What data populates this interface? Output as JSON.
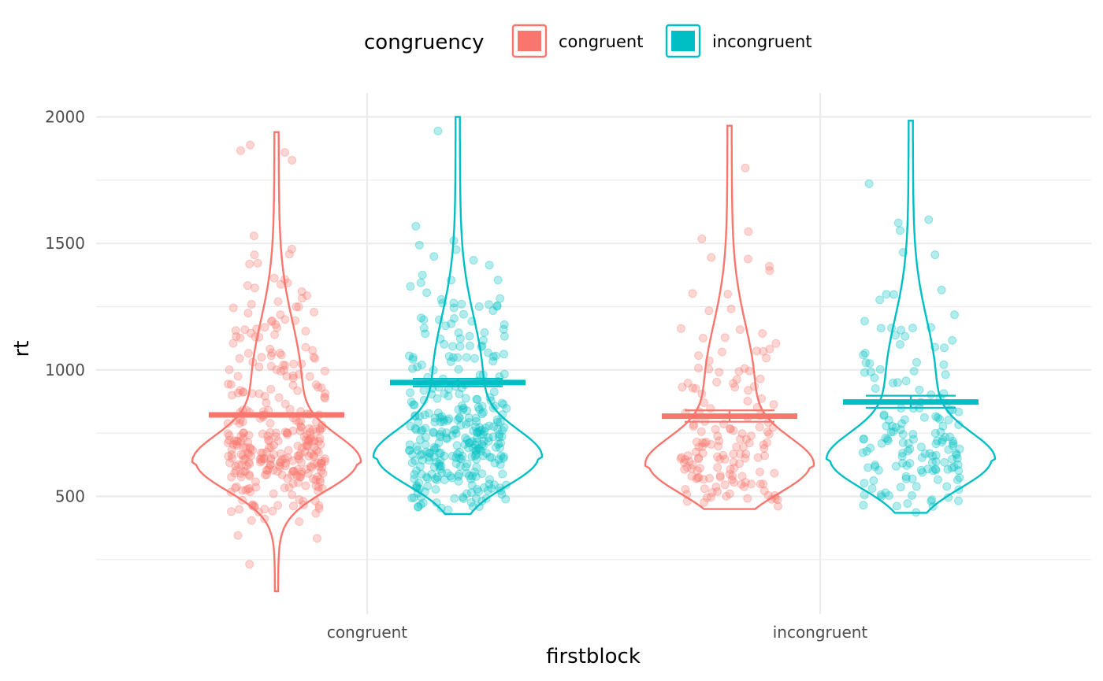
{
  "chart_data": {
    "type": "violin",
    "title": "",
    "xlabel": "firstblock",
    "ylabel": "rt",
    "categories": [
      "congruent",
      "incongruent"
    ],
    "ylim": [
      80,
      2090
    ],
    "yticks": [
      500,
      1000,
      1500,
      2000
    ],
    "grid": true,
    "legend": {
      "title": "congruency",
      "position": "top",
      "entries": [
        "congruent",
        "incongruent"
      ]
    },
    "colors": {
      "congruent": "#F8766D",
      "incongruent": "#00BFC4"
    },
    "series": [
      {
        "name": "congruent",
        "color": "#F8766D",
        "groups": [
          {
            "category": "congruent",
            "mean": 822,
            "ci": [
              815,
              829
            ],
            "min": 125,
            "max": 1940,
            "mode": 630,
            "n": 340
          },
          {
            "category": "incongruent",
            "mean": 817,
            "ci": [
              795,
              840
            ],
            "min": 450,
            "max": 1965,
            "mode": 620,
            "n": 160
          }
        ]
      },
      {
        "name": "incongruent",
        "color": "#00BFC4",
        "groups": [
          {
            "category": "congruent",
            "mean": 950,
            "ci": [
              935,
              965
            ],
            "min": 430,
            "max": 2000,
            "mode": 650,
            "n": 340
          },
          {
            "category": "incongruent",
            "mean": 873,
            "ci": [
              850,
              898
            ],
            "min": 435,
            "max": 1985,
            "mode": 640,
            "n": 160
          }
        ]
      }
    ]
  }
}
